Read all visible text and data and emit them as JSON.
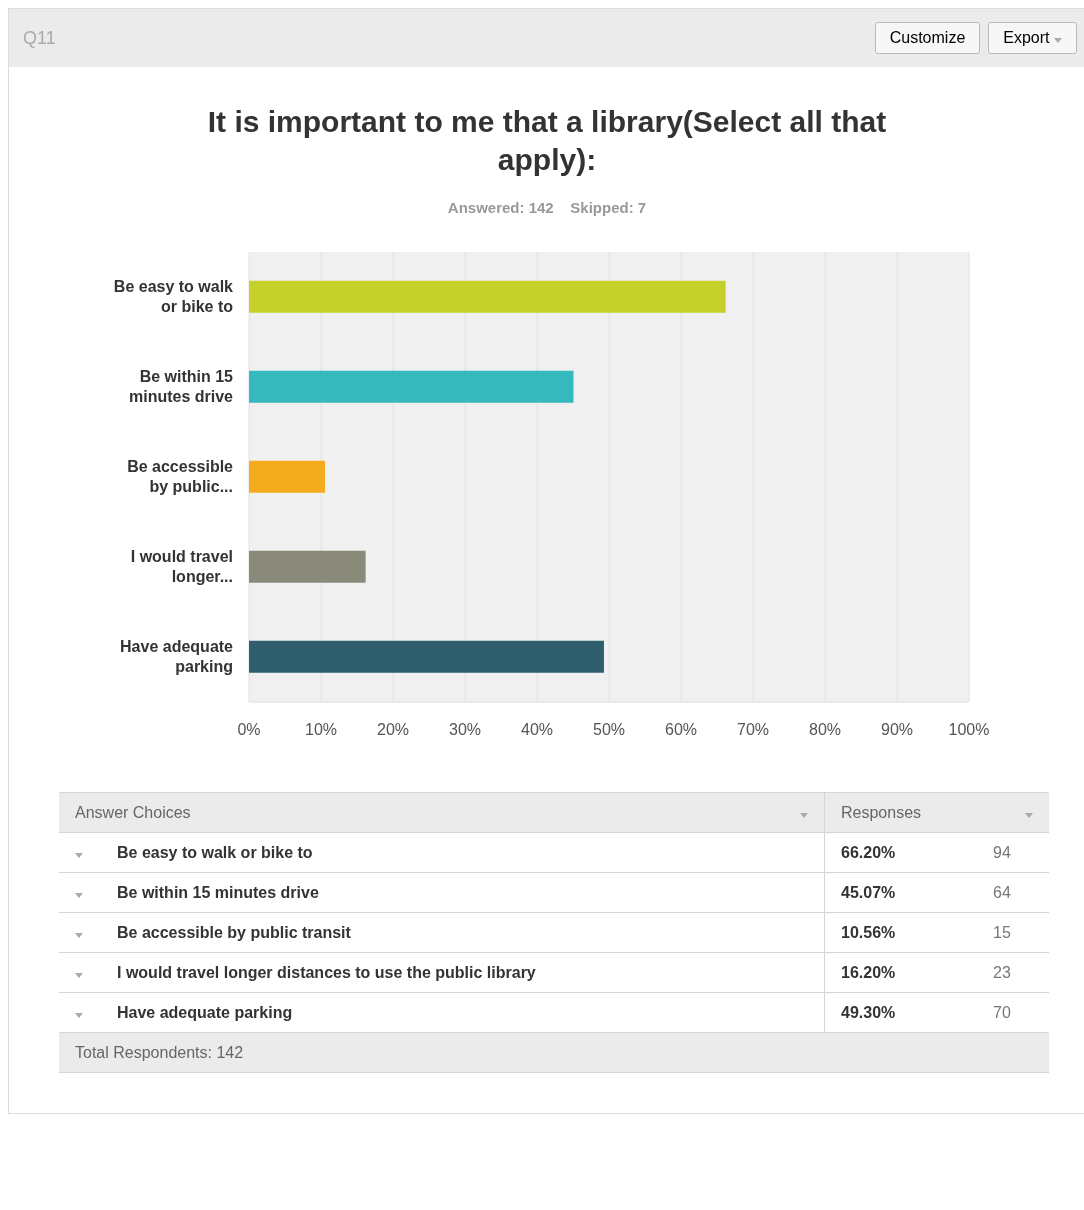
{
  "chart_data": {
    "type": "bar",
    "orientation": "horizontal",
    "title": "It is important to me that a library(Select all that apply):",
    "subtitle": "Answered: 142    Skipped: 7",
    "categories": [
      "Be easy to walk or bike to",
      "Be within 15 minutes drive",
      "Be accessible by public...",
      "I would travel longer...",
      "Have adequate parking"
    ],
    "values": [
      66.2,
      45.07,
      10.56,
      16.2,
      49.3
    ],
    "colors": [
      "#c5d12a",
      "#35b9bd",
      "#f5ab1e",
      "#8a8a7a",
      "#2f5f6e"
    ],
    "xlim": [
      0,
      100
    ],
    "xticks": [
      {
        "value": 0,
        "label": "0%"
      },
      {
        "value": 10,
        "label": "10%"
      },
      {
        "value": 20,
        "label": "20%"
      },
      {
        "value": 30,
        "label": "30%"
      },
      {
        "value": 40,
        "label": "40%"
      },
      {
        "value": 50,
        "label": "50%"
      },
      {
        "value": 60,
        "label": "60%"
      },
      {
        "value": 70,
        "label": "70%"
      },
      {
        "value": 80,
        "label": "80%"
      },
      {
        "value": 90,
        "label": "90%"
      },
      {
        "value": 100,
        "label": "100%"
      }
    ],
    "grid": "x",
    "annotations": [
      "Q11",
      "Customize",
      "Export",
      "Answer Choices",
      "Responses",
      "Be easy to walk or bike to",
      "Be within 15 minutes drive",
      "Be accessible by public transit",
      "I would travel longer distances to use the public library",
      "Have adequate parking",
      "66.20%",
      "45.07%",
      "10.56%",
      "16.20%",
      "49.30%",
      "94",
      "64",
      "15",
      "23",
      "70",
      "Total Respondents: 142"
    ]
  }
}
